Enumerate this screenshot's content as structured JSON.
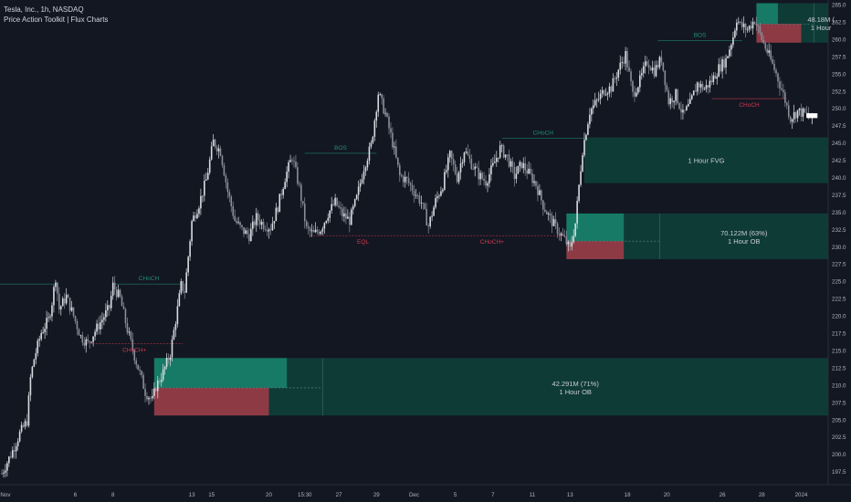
{
  "header": {
    "symbol_line": "Tesla, Inc., 1h, NASDAQ",
    "indicator_line": "Price Action Toolkit | Flux Charts"
  },
  "colors": {
    "background": "#131722",
    "candle": "#d9dbe0",
    "bull_zone": "#167a66",
    "bull_zone_ext": "#0f3b36",
    "bear_zone": "#8e3a45",
    "bos_color": "#1f8f78",
    "choch_bear_color": "#d2384c",
    "axis_text": "#b2b5be"
  },
  "chart_data": {
    "type": "candlestick",
    "title": "",
    "xlabel": "",
    "ylabel": "",
    "ylim": [
      195.6,
      265.4
    ],
    "y_ticks": [
      197.5,
      200.0,
      202.5,
      205.0,
      207.5,
      210.0,
      212.5,
      215.0,
      217.5,
      220.0,
      222.5,
      225.0,
      227.5,
      230.0,
      232.5,
      235.0,
      237.5,
      240.0,
      242.5,
      245.0,
      247.5,
      250.0,
      252.5,
      255.0,
      257.5,
      260.0,
      262.5,
      265.0
    ],
    "x_ticks": [
      {
        "label": "Nov",
        "bar": 2
      },
      {
        "label": "6",
        "bar": 41
      },
      {
        "label": "8",
        "bar": 62
      },
      {
        "label": "13",
        "bar": 106
      },
      {
        "label": "15",
        "bar": 117
      },
      {
        "label": "20",
        "bar": 149
      },
      {
        "label": "15:30",
        "bar": 169
      },
      {
        "label": "27",
        "bar": 188
      },
      {
        "label": "29",
        "bar": 209
      },
      {
        "label": "Dec",
        "bar": 230
      },
      {
        "label": "5",
        "bar": 253
      },
      {
        "label": "7",
        "bar": 274
      },
      {
        "label": "11",
        "bar": 296
      },
      {
        "label": "13",
        "bar": 317
      },
      {
        "label": "18",
        "bar": 349
      },
      {
        "label": "20",
        "bar": 371
      },
      {
        "label": "26",
        "bar": 402
      },
      {
        "label": "28",
        "bar": 424
      },
      {
        "label": "2024",
        "bar": 446
      }
    ],
    "current_price": 248.5,
    "price_path": [
      [
        0,
        197.2
      ],
      [
        6,
        200.5
      ],
      [
        10,
        203.0
      ],
      [
        14,
        204.8
      ],
      [
        16,
        211.0
      ],
      [
        18,
        213.8
      ],
      [
        22,
        217.6
      ],
      [
        26,
        219.4
      ],
      [
        28,
        222.0
      ],
      [
        30,
        225.6
      ],
      [
        32,
        221.0
      ],
      [
        36,
        222.8
      ],
      [
        40,
        220.0
      ],
      [
        44,
        217.0
      ],
      [
        48,
        216.0
      ],
      [
        52,
        217.8
      ],
      [
        56,
        219.5
      ],
      [
        60,
        221.2
      ],
      [
        62,
        224.4
      ],
      [
        66,
        222.5
      ],
      [
        70,
        218.0
      ],
      [
        74,
        214.2
      ],
      [
        78,
        210.8
      ],
      [
        80,
        209.0
      ],
      [
        84,
        207.8
      ],
      [
        86,
        209.8
      ],
      [
        90,
        211.8
      ],
      [
        94,
        214.6
      ],
      [
        98,
        221.0
      ],
      [
        100,
        224.4
      ],
      [
        102,
        223.6
      ],
      [
        106,
        233.6
      ],
      [
        110,
        236.2
      ],
      [
        114,
        239.6
      ],
      [
        118,
        245.2
      ],
      [
        122,
        243.8
      ],
      [
        126,
        238.0
      ],
      [
        130,
        233.8
      ],
      [
        134,
        232.4
      ],
      [
        138,
        231.6
      ],
      [
        142,
        234.2
      ],
      [
        146,
        233.2
      ],
      [
        150,
        232.8
      ],
      [
        154,
        235.8
      ],
      [
        158,
        240.0
      ],
      [
        162,
        243.0
      ],
      [
        166,
        238.5
      ],
      [
        170,
        232.5
      ],
      [
        174,
        231.8
      ],
      [
        178,
        232.6
      ],
      [
        182,
        234.8
      ],
      [
        186,
        236.4
      ],
      [
        190,
        234.6
      ],
      [
        194,
        233.8
      ],
      [
        198,
        237.0
      ],
      [
        202,
        241.5
      ],
      [
        206,
        244.6
      ],
      [
        210,
        252.2
      ],
      [
        214,
        249.2
      ],
      [
        218,
        245.0
      ],
      [
        222,
        240.2
      ],
      [
        226,
        239.6
      ],
      [
        230,
        238.0
      ],
      [
        234,
        236.4
      ],
      [
        238,
        233.0
      ],
      [
        242,
        236.6
      ],
      [
        246,
        239.0
      ],
      [
        250,
        243.2
      ],
      [
        254,
        240.0
      ],
      [
        258,
        244.0
      ],
      [
        262,
        242.0
      ],
      [
        266,
        240.4
      ],
      [
        270,
        239.4
      ],
      [
        274,
        241.6
      ],
      [
        278,
        244.2
      ],
      [
        282,
        243.0
      ],
      [
        286,
        240.2
      ],
      [
        290,
        242.0
      ],
      [
        294,
        240.6
      ],
      [
        298,
        239.0
      ],
      [
        302,
        236.0
      ],
      [
        306,
        234.0
      ],
      [
        310,
        232.4
      ],
      [
        314,
        231.0
      ],
      [
        317,
        229.6
      ],
      [
        320,
        233.4
      ],
      [
        322,
        238.8
      ],
      [
        324,
        244.0
      ],
      [
        326,
        246.8
      ],
      [
        328,
        249.6
      ],
      [
        332,
        251.0
      ],
      [
        336,
        252.6
      ],
      [
        340,
        253.0
      ],
      [
        344,
        255.6
      ],
      [
        348,
        257.8
      ],
      [
        352,
        252.0
      ],
      [
        356,
        254.0
      ],
      [
        360,
        256.8
      ],
      [
        364,
        255.4
      ],
      [
        368,
        257.2
      ],
      [
        372,
        251.0
      ],
      [
        376,
        252.0
      ],
      [
        380,
        249.0
      ],
      [
        384,
        250.6
      ],
      [
        388,
        253.6
      ],
      [
        392,
        252.8
      ],
      [
        396,
        254.0
      ],
      [
        400,
        255.8
      ],
      [
        404,
        257.0
      ],
      [
        408,
        260.4
      ],
      [
        410,
        263.0
      ],
      [
        412,
        262.0
      ],
      [
        416,
        261.4
      ],
      [
        420,
        262.8
      ],
      [
        424,
        260.0
      ],
      [
        428,
        257.6
      ],
      [
        432,
        255.0
      ],
      [
        436,
        252.0
      ],
      [
        440,
        248.6
      ],
      [
        444,
        249.6
      ],
      [
        448,
        249.2
      ],
      [
        452,
        248.5
      ]
    ],
    "annotations": [
      {
        "label": "BOS",
        "kind": "bos",
        "price": 243.5,
        "from_bar": 169,
        "to_bar": 209
      },
      {
        "label": "CHoCH",
        "kind": "bos",
        "price": 245.7,
        "from_bar": 279,
        "to_bar": 325
      },
      {
        "label": "CHoCH",
        "kind": "bos",
        "price": 224.6,
        "from_bar": 63,
        "to_bar": 101
      },
      {
        "label": "BOS",
        "kind": "bos",
        "price": 259.8,
        "from_bar": 366,
        "to_bar": 413
      },
      {
        "label": "EQL",
        "kind": "bear",
        "price": 231.6,
        "from_bar": 172,
        "to_bar": 231
      },
      {
        "label": "CHoCH+",
        "kind": "bear",
        "price": 231.6,
        "from_bar": 231,
        "to_bar": 316
      },
      {
        "label": "CHoCH+",
        "kind": "bear",
        "price": 216.0,
        "from_bar": 47,
        "to_bar": 101
      },
      {
        "label": "CHoCH",
        "kind": "bear",
        "price": 251.4,
        "from_bar": 396,
        "to_bar": 438
      }
    ],
    "zones": [
      {
        "kind": "fvg",
        "label": "1 Hour FVG",
        "top": 245.8,
        "bottom": 239.2,
        "from_bar": 325,
        "to_bar": 465
      },
      {
        "kind": "ob",
        "label": "1 Hour OB",
        "volume_label": "70.122M (63%)",
        "top": 234.8,
        "mid": 230.8,
        "bottom": 228.2,
        "from_bar": 315,
        "bull_to_bar": 347,
        "bear_to_bar": 347,
        "to_bar": 465
      },
      {
        "kind": "ob",
        "label": "1 Hour OB",
        "volume_label": "42.291M (71%)",
        "top": 213.9,
        "mid": 209.6,
        "bottom": 205.6,
        "from_bar": 85,
        "bull_to_bar": 159,
        "bear_to_bar": 149,
        "to_bar": 465
      },
      {
        "kind": "ob",
        "label": "1 Hour",
        "volume_label": "48.18M (",
        "top": 265.2,
        "mid": 262.2,
        "bottom": 259.5,
        "from_bar": 421,
        "bull_to_bar": 433,
        "bear_to_bar": 446,
        "to_bar": 465
      }
    ]
  }
}
